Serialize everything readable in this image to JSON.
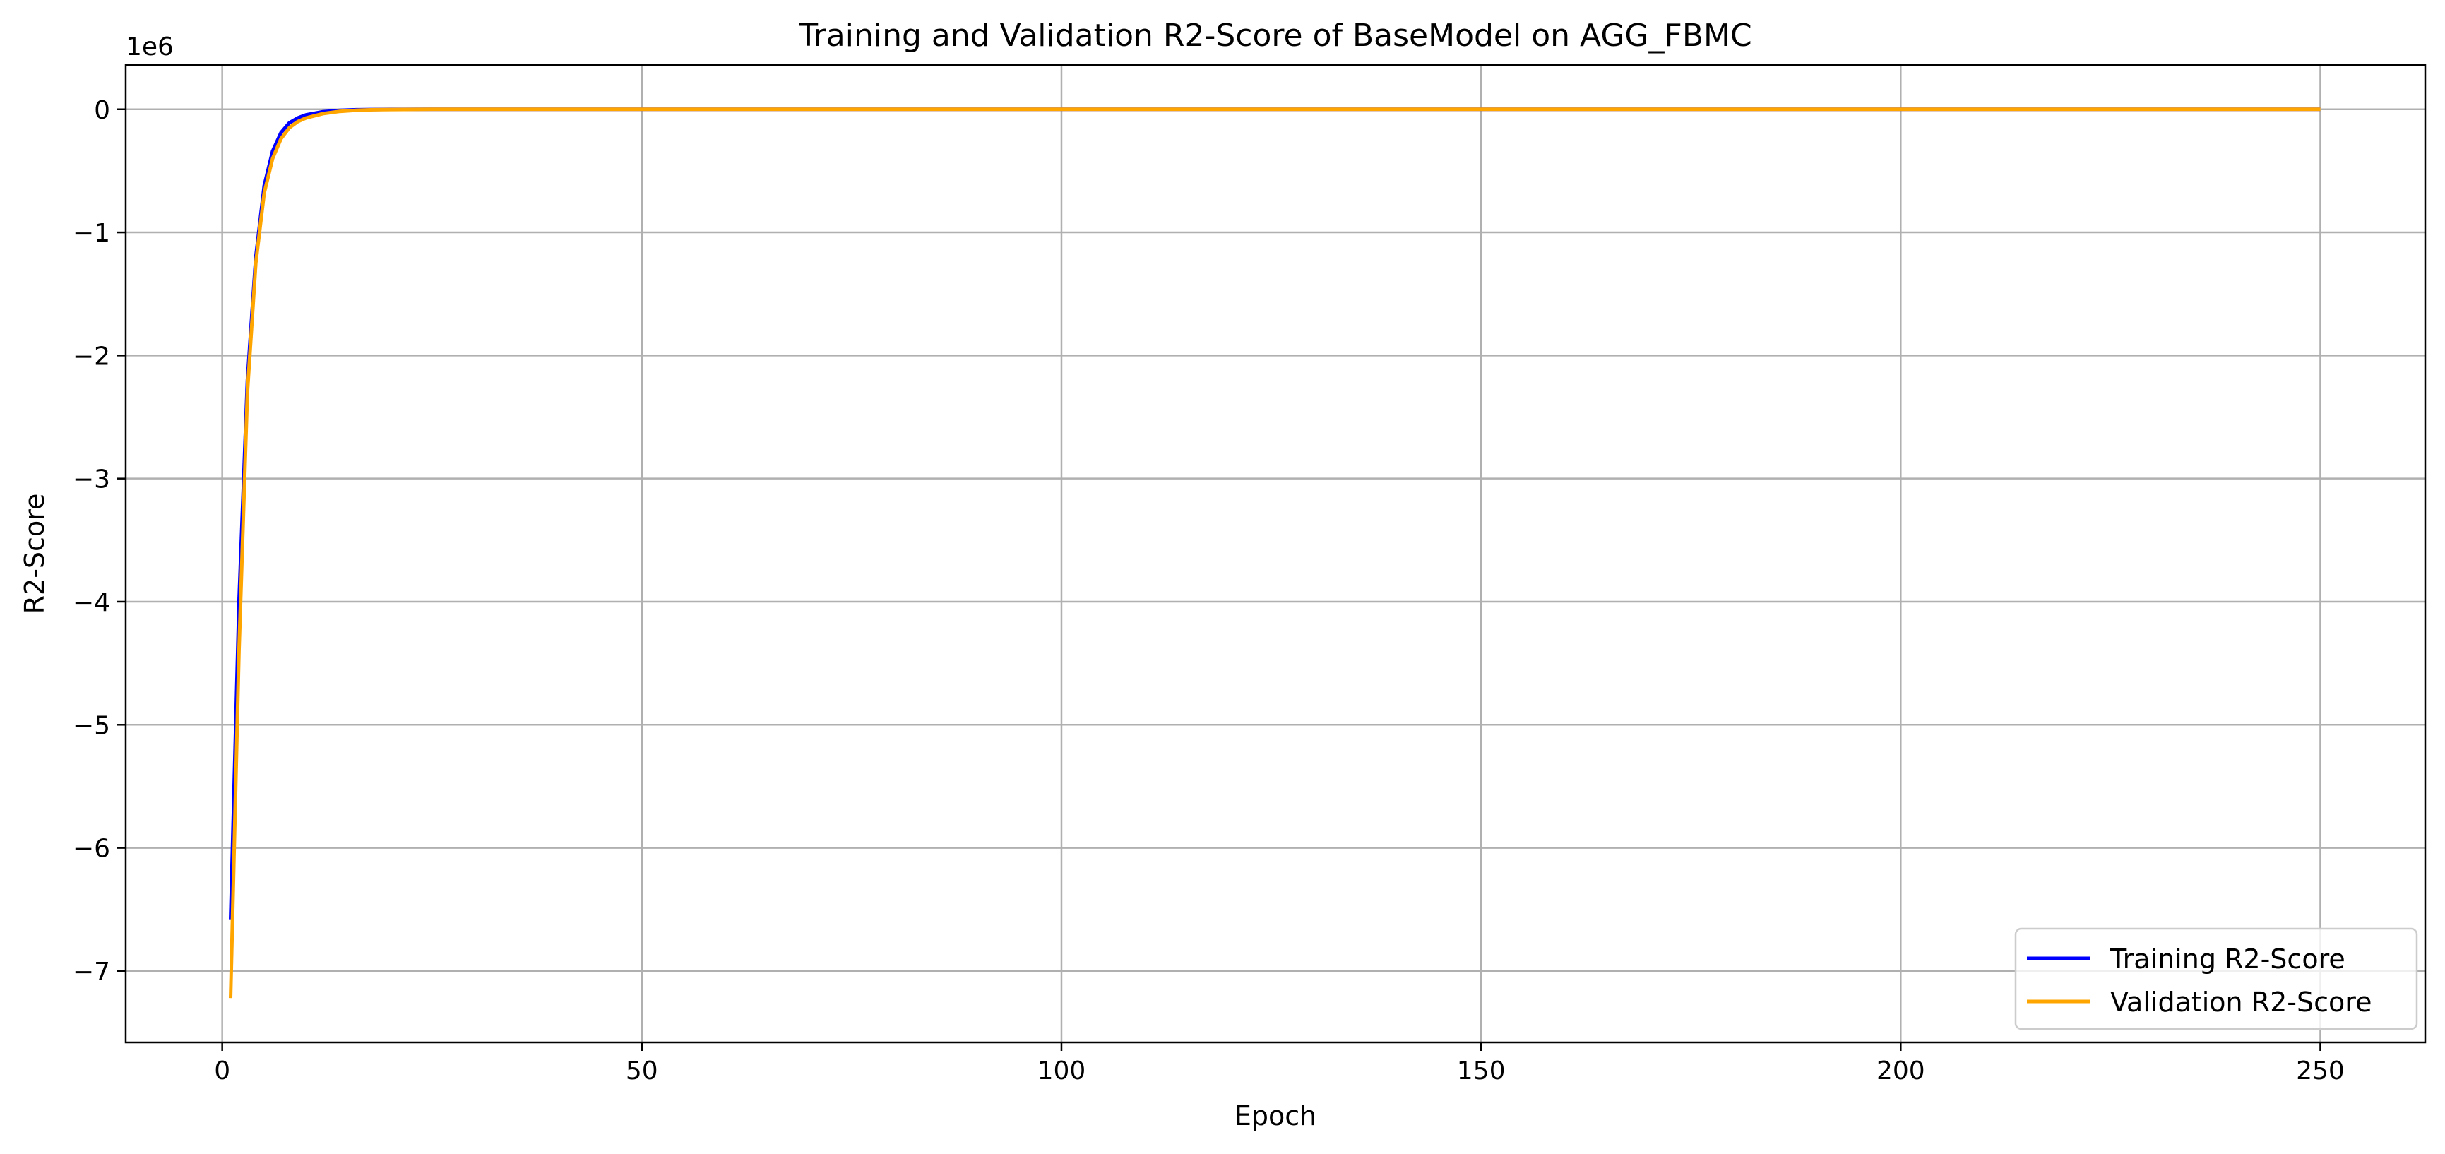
{
  "chart_data": {
    "type": "line",
    "title": "Training and Validation R2-Score of BaseModel on AGG_FBMC",
    "xlabel": "Epoch",
    "ylabel": "R2-Score",
    "y_scale_label": "1e6",
    "y_scale_factor": 1000000,
    "xlim": [
      -11.5,
      262.5
    ],
    "ylim": [
      -7.58,
      0.36
    ],
    "grid": true,
    "legend_position": "lower right",
    "x_ticks": [
      0,
      50,
      100,
      150,
      200,
      250
    ],
    "x_tick_labels": [
      "0",
      "50",
      "100",
      "150",
      "200",
      "250"
    ],
    "y_ticks": [
      0,
      -1,
      -2,
      -3,
      -4,
      -5,
      -6,
      -7
    ],
    "y_tick_labels": [
      "0",
      "−1",
      "−2",
      "−3",
      "−4",
      "−5",
      "−6",
      "−7"
    ],
    "x": [
      1,
      2,
      3,
      4,
      5,
      6,
      7,
      8,
      9,
      10,
      12,
      14,
      16,
      18,
      20,
      25,
      30,
      40,
      50,
      100,
      150,
      200,
      250
    ],
    "series": [
      {
        "name": "Training R2-Score",
        "color": "#0000ff",
        "values": [
          -6.58,
          -4.0,
          -2.2,
          -1.2,
          -0.62,
          -0.34,
          -0.19,
          -0.11,
          -0.07,
          -0.045,
          -0.02,
          -0.009,
          -0.004,
          -0.002,
          -0.001,
          -0.0003,
          0,
          0,
          0,
          0,
          0,
          0,
          0
        ]
      },
      {
        "name": "Validation R2-Score",
        "color": "#ffa500",
        "values": [
          -7.22,
          -4.4,
          -2.3,
          -1.25,
          -0.68,
          -0.4,
          -0.24,
          -0.15,
          -0.1,
          -0.07,
          -0.035,
          -0.017,
          -0.008,
          -0.004,
          -0.002,
          -0.0005,
          0,
          0,
          0,
          0,
          0,
          0,
          0
        ]
      }
    ]
  }
}
